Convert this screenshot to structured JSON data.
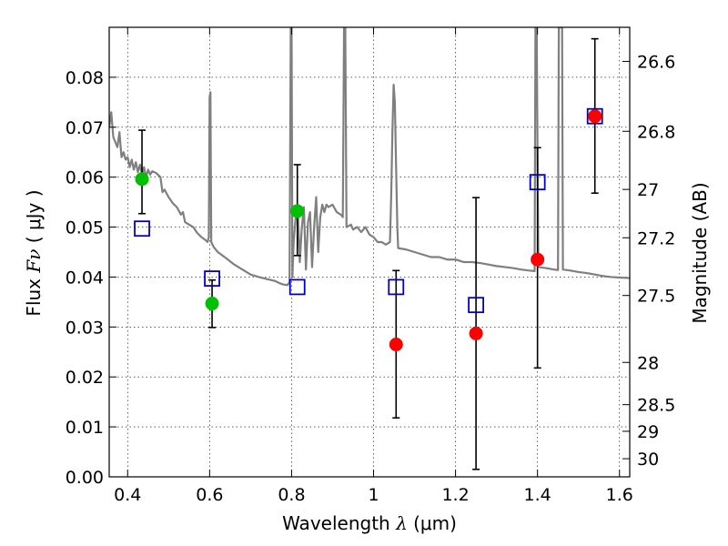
{
  "chart_data": {
    "type": "scatter",
    "title": "",
    "xlabel": {
      "main": "Wavelength ",
      "symbol": "λ",
      "unit": " (μm)"
    },
    "ylabel": {
      "main": "Flux ",
      "symbol": "Fν",
      "unit": " ( μJy )"
    },
    "y2label": "Magnitude (AB)",
    "xlim": [
      0.355,
      1.625
    ],
    "ylim": [
      0.0,
      0.09
    ],
    "grid": true,
    "legend": "none",
    "x_ticks": [
      {
        "value": 0.4,
        "label": "0.4"
      },
      {
        "value": 0.6,
        "label": "0.6"
      },
      {
        "value": 0.8,
        "label": "0.8"
      },
      {
        "value": 1.0,
        "label": "1"
      },
      {
        "value": 1.2,
        "label": "1.2"
      },
      {
        "value": 1.4,
        "label": "1.4"
      },
      {
        "value": 1.6,
        "label": "1.6"
      }
    ],
    "y_ticks": [
      {
        "value": 0.0,
        "label": "0.00"
      },
      {
        "value": 0.01,
        "label": "0.01"
      },
      {
        "value": 0.02,
        "label": "0.02"
      },
      {
        "value": 0.03,
        "label": "0.03"
      },
      {
        "value": 0.04,
        "label": "0.04"
      },
      {
        "value": 0.05,
        "label": "0.05"
      },
      {
        "value": 0.06,
        "label": "0.06"
      },
      {
        "value": 0.07,
        "label": "0.07"
      },
      {
        "value": 0.08,
        "label": "0.08"
      }
    ],
    "y2_ticks": [
      {
        "mag": 26.6,
        "label": "26.6"
      },
      {
        "mag": 26.8,
        "label": "26.8"
      },
      {
        "mag": 27.0,
        "label": "27"
      },
      {
        "mag": 27.2,
        "label": "27.2"
      },
      {
        "mag": 27.5,
        "label": "27.5"
      },
      {
        "mag": 28.0,
        "label": "28"
      },
      {
        "mag": 28.5,
        "label": "28.5"
      },
      {
        "mag": 29.0,
        "label": "29"
      },
      {
        "mag": 30.0,
        "label": "30"
      }
    ],
    "colors": {
      "detection": "#ff0000",
      "optical": "#00c000",
      "model": "#0000cc",
      "spectrum": "#7f7f7f",
      "errorbar": "#000000"
    },
    "observed": [
      {
        "x": 0.435,
        "y": 0.0596,
        "yerr_low": 0.0069,
        "yerr_high": 0.0098,
        "color": "optical"
      },
      {
        "x": 0.606,
        "y": 0.0347,
        "yerr_low": 0.0048,
        "yerr_high": 0.0047,
        "color": "optical"
      },
      {
        "x": 0.814,
        "y": 0.0532,
        "yerr_low": 0.0089,
        "yerr_high": 0.0093,
        "color": "optical"
      },
      {
        "x": 1.055,
        "y": 0.0265,
        "yerr_low": 0.0147,
        "yerr_high": 0.0148,
        "color": "detection"
      },
      {
        "x": 1.25,
        "y": 0.0287,
        "yerr_low": 0.0272,
        "yerr_high": 0.0272,
        "color": "detection"
      },
      {
        "x": 1.4,
        "y": 0.0435,
        "yerr_low": 0.0217,
        "yerr_high": 0.0224,
        "color": "detection"
      },
      {
        "x": 1.54,
        "y": 0.0722,
        "yerr_low": 0.0154,
        "yerr_high": 0.0155,
        "color": "detection"
      }
    ],
    "model_points": [
      {
        "x": 0.435,
        "y": 0.0497
      },
      {
        "x": 0.606,
        "y": 0.0397
      },
      {
        "x": 0.814,
        "y": 0.038
      },
      {
        "x": 1.055,
        "y": 0.038
      },
      {
        "x": 1.25,
        "y": 0.0344
      },
      {
        "x": 1.4,
        "y": 0.059
      },
      {
        "x": 1.54,
        "y": 0.0722
      }
    ],
    "spectrum": [
      [
        0.355,
        0.07
      ],
      [
        0.36,
        0.073
      ],
      [
        0.365,
        0.068
      ],
      [
        0.37,
        0.067
      ],
      [
        0.375,
        0.066
      ],
      [
        0.38,
        0.069
      ],
      [
        0.385,
        0.064
      ],
      [
        0.39,
        0.065
      ],
      [
        0.395,
        0.0635
      ],
      [
        0.4,
        0.064
      ],
      [
        0.405,
        0.062
      ],
      [
        0.41,
        0.0635
      ],
      [
        0.415,
        0.0615
      ],
      [
        0.42,
        0.063
      ],
      [
        0.425,
        0.061
      ],
      [
        0.43,
        0.0625
      ],
      [
        0.435,
        0.0605
      ],
      [
        0.44,
        0.062
      ],
      [
        0.445,
        0.06
      ],
      [
        0.45,
        0.0615
      ],
      [
        0.455,
        0.0605
      ],
      [
        0.46,
        0.0612
      ],
      [
        0.465,
        0.061
      ],
      [
        0.47,
        0.0608
      ],
      [
        0.48,
        0.06
      ],
      [
        0.485,
        0.057
      ],
      [
        0.49,
        0.0575
      ],
      [
        0.5,
        0.056
      ],
      [
        0.51,
        0.0548
      ],
      [
        0.52,
        0.054
      ],
      [
        0.53,
        0.0525
      ],
      [
        0.535,
        0.053
      ],
      [
        0.54,
        0.051
      ],
      [
        0.55,
        0.0505
      ],
      [
        0.56,
        0.05
      ],
      [
        0.57,
        0.0488
      ],
      [
        0.58,
        0.048
      ],
      [
        0.59,
        0.0474
      ],
      [
        0.595,
        0.047
      ],
      [
        0.598,
        0.048
      ],
      [
        0.6,
        0.076
      ],
      [
        0.602,
        0.077
      ],
      [
        0.604,
        0.047
      ],
      [
        0.61,
        0.046
      ],
      [
        0.62,
        0.045
      ],
      [
        0.64,
        0.0438
      ],
      [
        0.66,
        0.0425
      ],
      [
        0.68,
        0.0415
      ],
      [
        0.7,
        0.0405
      ],
      [
        0.72,
        0.04
      ],
      [
        0.74,
        0.0396
      ],
      [
        0.76,
        0.0392
      ],
      [
        0.77,
        0.0388
      ],
      [
        0.78,
        0.0385
      ],
      [
        0.79,
        0.0384
      ],
      [
        0.795,
        0.039
      ],
      [
        0.798,
        0.09
      ],
      [
        0.8,
        0.09
      ],
      [
        0.802,
        0.04
      ],
      [
        0.805,
        0.047
      ],
      [
        0.81,
        0.052
      ],
      [
        0.815,
        0.054
      ],
      [
        0.82,
        0.043
      ],
      [
        0.825,
        0.05
      ],
      [
        0.83,
        0.054
      ],
      [
        0.835,
        0.0415
      ],
      [
        0.84,
        0.051
      ],
      [
        0.845,
        0.053
      ],
      [
        0.85,
        0.042
      ],
      [
        0.855,
        0.05
      ],
      [
        0.86,
        0.056
      ],
      [
        0.865,
        0.045
      ],
      [
        0.87,
        0.052
      ],
      [
        0.875,
        0.0545
      ],
      [
        0.88,
        0.053
      ],
      [
        0.885,
        0.0545
      ],
      [
        0.89,
        0.054
      ],
      [
        0.9,
        0.0545
      ],
      [
        0.91,
        0.053
      ],
      [
        0.92,
        0.0525
      ],
      [
        0.925,
        0.052
      ],
      [
        0.928,
        0.09
      ],
      [
        0.931,
        0.09
      ],
      [
        0.934,
        0.05
      ],
      [
        0.945,
        0.0505
      ],
      [
        0.95,
        0.0495
      ],
      [
        0.96,
        0.05
      ],
      [
        0.97,
        0.049
      ],
      [
        0.98,
        0.05
      ],
      [
        0.99,
        0.0485
      ],
      [
        1.0,
        0.048
      ],
      [
        1.01,
        0.047
      ],
      [
        1.02,
        0.047
      ],
      [
        1.03,
        0.0465
      ],
      [
        1.04,
        0.047
      ],
      [
        1.043,
        0.056
      ],
      [
        1.046,
        0.069
      ],
      [
        1.049,
        0.0785
      ],
      [
        1.052,
        0.075
      ],
      [
        1.055,
        0.062
      ],
      [
        1.058,
        0.05
      ],
      [
        1.06,
        0.0458
      ],
      [
        1.08,
        0.0455
      ],
      [
        1.1,
        0.045
      ],
      [
        1.12,
        0.0445
      ],
      [
        1.14,
        0.044
      ],
      [
        1.16,
        0.044
      ],
      [
        1.18,
        0.0435
      ],
      [
        1.2,
        0.0435
      ],
      [
        1.22,
        0.043
      ],
      [
        1.24,
        0.043
      ],
      [
        1.26,
        0.0428
      ],
      [
        1.28,
        0.0425
      ],
      [
        1.3,
        0.0422
      ],
      [
        1.32,
        0.042
      ],
      [
        1.34,
        0.0418
      ],
      [
        1.36,
        0.0415
      ],
      [
        1.38,
        0.0413
      ],
      [
        1.393,
        0.0412
      ],
      [
        1.395,
        0.09
      ],
      [
        1.398,
        0.09
      ],
      [
        1.402,
        0.042
      ],
      [
        1.42,
        0.0418
      ],
      [
        1.44,
        0.0415
      ],
      [
        1.45,
        0.0414
      ],
      [
        1.452,
        0.09
      ],
      [
        1.458,
        0.09
      ],
      [
        1.46,
        0.09
      ],
      [
        1.462,
        0.0415
      ],
      [
        1.48,
        0.0413
      ],
      [
        1.5,
        0.041
      ],
      [
        1.52,
        0.0408
      ],
      [
        1.54,
        0.0405
      ],
      [
        1.56,
        0.0402
      ],
      [
        1.58,
        0.04
      ],
      [
        1.6,
        0.0399
      ],
      [
        1.625,
        0.0398
      ]
    ]
  }
}
